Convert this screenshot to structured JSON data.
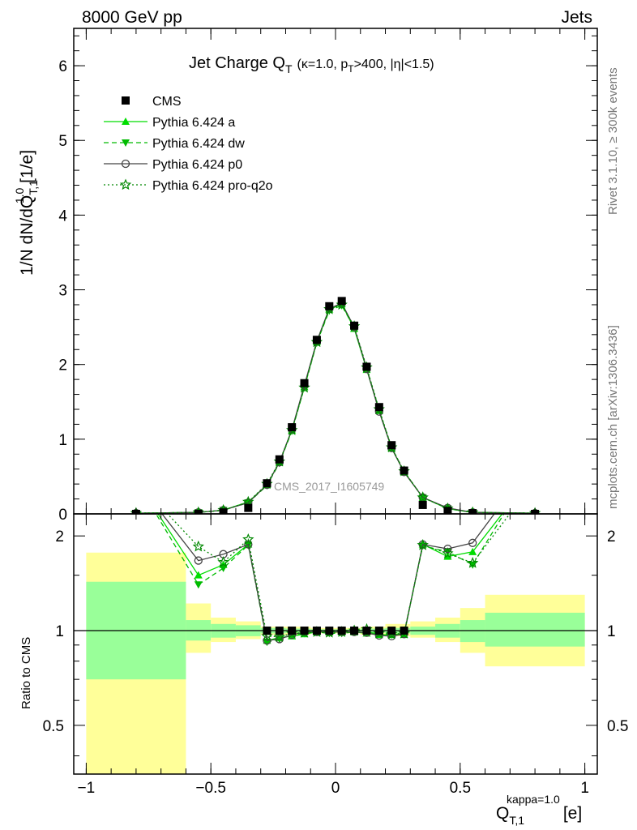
{
  "header": {
    "left": "8000 GeV pp",
    "right": "Jets"
  },
  "side_text": {
    "rivet": "Rivet 3.1.10, ≥ 300k events",
    "mcplots": "mcplots.cern.ch [arXiv:1306.3436]"
  },
  "watermark": "CMS_2017_I1605749",
  "chart_data": {
    "type": "line",
    "title": {
      "main": "Jet Charge Q",
      "main_sub": "T",
      "cond_a": "(κ=1.0, p",
      "cond_sub": "T",
      "cond_b": ">400, |η|<1.5)"
    },
    "xlabel": {
      "main": "Q",
      "sub": "T,1",
      "sup": "kappa=1.0",
      "unit": "[e]"
    },
    "ylabel": {
      "a": "1/N dN/dQ",
      "sub": "T,1",
      "sup": "1.0",
      "b": " [1/e]"
    },
    "ratio_ylabel": "Ratio to CMS",
    "xlim": [
      -1.05,
      1.05
    ],
    "ylim_main": [
      0,
      6.5
    ],
    "ylim_ratio": [
      0.35,
      2.35
    ],
    "ratio_log": true,
    "xticks": [
      {
        "v": -1,
        "label": "−1"
      },
      {
        "v": -0.5,
        "label": "−0.5"
      },
      {
        "v": 0,
        "label": "0"
      },
      {
        "v": 0.5,
        "label": "0.5"
      },
      {
        "v": 1,
        "label": "1"
      }
    ],
    "yticks_main": [
      {
        "v": 0,
        "label": "0"
      },
      {
        "v": 1,
        "label": "1"
      },
      {
        "v": 2,
        "label": "2"
      },
      {
        "v": 3,
        "label": "3"
      },
      {
        "v": 4,
        "label": "4"
      },
      {
        "v": 5,
        "label": "5"
      },
      {
        "v": 6,
        "label": "6"
      }
    ],
    "yticks_ratio": [
      {
        "v": 0.5,
        "label": "0.5"
      },
      {
        "v": 1,
        "label": "1"
      },
      {
        "v": 2,
        "label": "2"
      }
    ],
    "bands": [
      {
        "x0": -1.0,
        "x1": -0.6,
        "inner": [
          0.7,
          1.43
        ],
        "outer": [
          0.3,
          1.77
        ]
      },
      {
        "x0": -0.6,
        "x1": -0.5,
        "inner": [
          0.93,
          1.08
        ],
        "outer": [
          0.85,
          1.22
        ]
      },
      {
        "x0": -0.5,
        "x1": -0.4,
        "inner": [
          0.95,
          1.05
        ],
        "outer": [
          0.92,
          1.1
        ]
      },
      {
        "x0": -0.4,
        "x1": -0.3,
        "inner": [
          0.96,
          1.04
        ],
        "outer": [
          0.94,
          1.07
        ]
      },
      {
        "x0": -0.3,
        "x1": -0.2,
        "inner": [
          0.98,
          1.02
        ],
        "outer": [
          0.97,
          1.03
        ]
      },
      {
        "x0": -0.2,
        "x1": -0.1,
        "inner": [
          0.985,
          1.015
        ],
        "outer": [
          0.97,
          1.03
        ]
      },
      {
        "x0": -0.1,
        "x1": 0.0,
        "inner": [
          0.99,
          1.01
        ],
        "outer": [
          0.98,
          1.02
        ]
      },
      {
        "x0": 0.0,
        "x1": 0.1,
        "inner": [
          0.99,
          1.01
        ],
        "outer": [
          0.98,
          1.02
        ]
      },
      {
        "x0": 0.1,
        "x1": 0.2,
        "inner": [
          0.985,
          1.015
        ],
        "outer": [
          0.97,
          1.03
        ]
      },
      {
        "x0": 0.2,
        "x1": 0.3,
        "inner": [
          0.98,
          1.02
        ],
        "outer": [
          0.96,
          1.05
        ]
      },
      {
        "x0": 0.3,
        "x1": 0.4,
        "inner": [
          0.97,
          1.03
        ],
        "outer": [
          0.95,
          1.07
        ]
      },
      {
        "x0": 0.4,
        "x1": 0.5,
        "inner": [
          0.95,
          1.05
        ],
        "outer": [
          0.92,
          1.1
        ]
      },
      {
        "x0": 0.5,
        "x1": 0.6,
        "inner": [
          0.92,
          1.08
        ],
        "outer": [
          0.85,
          1.18
        ]
      },
      {
        "x0": 0.6,
        "x1": 1.0,
        "inner": [
          0.89,
          1.14
        ],
        "outer": [
          0.77,
          1.3
        ]
      }
    ],
    "cms": {
      "name": "CMS",
      "x": [
        -0.8,
        -0.55,
        -0.45,
        -0.35,
        -0.275,
        -0.225,
        -0.175,
        -0.125,
        -0.075,
        -0.025,
        0.025,
        0.075,
        0.125,
        0.175,
        0.225,
        0.275,
        0.35,
        0.45,
        0.55,
        0.8
      ],
      "y": [
        0.0,
        0.0,
        0.02,
        0.08,
        0.41,
        0.73,
        1.16,
        1.75,
        2.33,
        2.78,
        2.85,
        2.52,
        1.97,
        1.43,
        0.92,
        0.58,
        0.12,
        0.04,
        0.01,
        0.0
      ]
    },
    "series": [
      {
        "name": "Pythia 6.424 a",
        "color": "#00dd00",
        "dash": "",
        "marker": "triangle-up",
        "x": [
          -0.8,
          -0.55,
          -0.45,
          -0.35,
          -0.275,
          -0.225,
          -0.175,
          -0.125,
          -0.075,
          -0.025,
          0.025,
          0.075,
          0.125,
          0.175,
          0.225,
          0.275,
          0.35,
          0.45,
          0.55,
          0.8
        ],
        "y": [
          0.01,
          0.02,
          0.05,
          0.16,
          0.39,
          0.69,
          1.12,
          1.7,
          2.3,
          2.74,
          2.81,
          2.48,
          1.93,
          1.38,
          0.88,
          0.56,
          0.22,
          0.07,
          0.02,
          0.01
        ],
        "ratio": [
          3.0,
          1.5,
          1.62,
          1.88,
          0.93,
          0.95,
          0.96,
          0.975,
          0.99,
          0.99,
          0.99,
          0.99,
          0.98,
          0.97,
          0.97,
          0.97,
          1.88,
          1.72,
          1.78,
          3.2
        ]
      },
      {
        "name": "Pythia 6.424 dw",
        "color": "#00bb00",
        "dash": "6,4",
        "marker": "triangle-down",
        "x": [
          -0.8,
          -0.55,
          -0.45,
          -0.35,
          -0.275,
          -0.225,
          -0.175,
          -0.125,
          -0.075,
          -0.025,
          0.025,
          0.075,
          0.125,
          0.175,
          0.225,
          0.275,
          0.35,
          0.45,
          0.55,
          0.8
        ],
        "y": [
          0.01,
          0.02,
          0.05,
          0.15,
          0.38,
          0.68,
          1.11,
          1.69,
          2.29,
          2.72,
          2.79,
          2.49,
          1.95,
          1.39,
          0.89,
          0.57,
          0.22,
          0.07,
          0.02,
          0.01
        ],
        "ratio": [
          3.0,
          1.4,
          1.58,
          1.87,
          0.92,
          0.94,
          0.97,
          0.98,
          0.99,
          0.98,
          0.98,
          0.99,
          0.99,
          0.975,
          0.97,
          0.98,
          1.86,
          1.78,
          1.62,
          3.4
        ]
      },
      {
        "name": "Pythia 6.424 p0",
        "color": "#444444",
        "dash": "",
        "marker": "circle-open",
        "x": [
          -0.8,
          -0.55,
          -0.45,
          -0.35,
          -0.275,
          -0.225,
          -0.175,
          -0.125,
          -0.075,
          -0.025,
          0.025,
          0.075,
          0.125,
          0.175,
          0.225,
          0.275,
          0.35,
          0.45,
          0.55,
          0.8
        ],
        "y": [
          0.01,
          0.02,
          0.05,
          0.15,
          0.39,
          0.69,
          1.13,
          1.72,
          2.31,
          2.75,
          2.82,
          2.5,
          1.94,
          1.37,
          0.88,
          0.56,
          0.22,
          0.08,
          0.02,
          0.01
        ],
        "ratio": [
          3.0,
          1.67,
          1.75,
          1.88,
          0.93,
          0.94,
          0.97,
          0.99,
          0.99,
          0.99,
          0.99,
          0.99,
          0.985,
          0.965,
          0.96,
          0.975,
          1.88,
          1.82,
          1.9,
          3.5
        ]
      },
      {
        "name": "Pythia 6.424 pro-q2o",
        "color": "#008800",
        "dash": "2,3",
        "marker": "star-open",
        "x": [
          -0.8,
          -0.55,
          -0.45,
          -0.35,
          -0.275,
          -0.225,
          -0.175,
          -0.125,
          -0.075,
          -0.025,
          0.025,
          0.075,
          0.125,
          0.175,
          0.225,
          0.275,
          0.35,
          0.45,
          0.55,
          0.8
        ],
        "y": [
          0.01,
          0.02,
          0.05,
          0.16,
          0.4,
          0.7,
          1.12,
          1.69,
          2.3,
          2.74,
          2.8,
          2.51,
          1.96,
          1.4,
          0.89,
          0.57,
          0.22,
          0.07,
          0.02,
          0.01
        ],
        "ratio": [
          3.0,
          1.85,
          1.65,
          1.95,
          0.96,
          0.955,
          0.98,
          0.985,
          0.99,
          0.985,
          0.99,
          1.0,
          1.01,
          0.98,
          0.975,
          0.98,
          1.87,
          1.76,
          1.64,
          3.0
        ]
      }
    ]
  }
}
